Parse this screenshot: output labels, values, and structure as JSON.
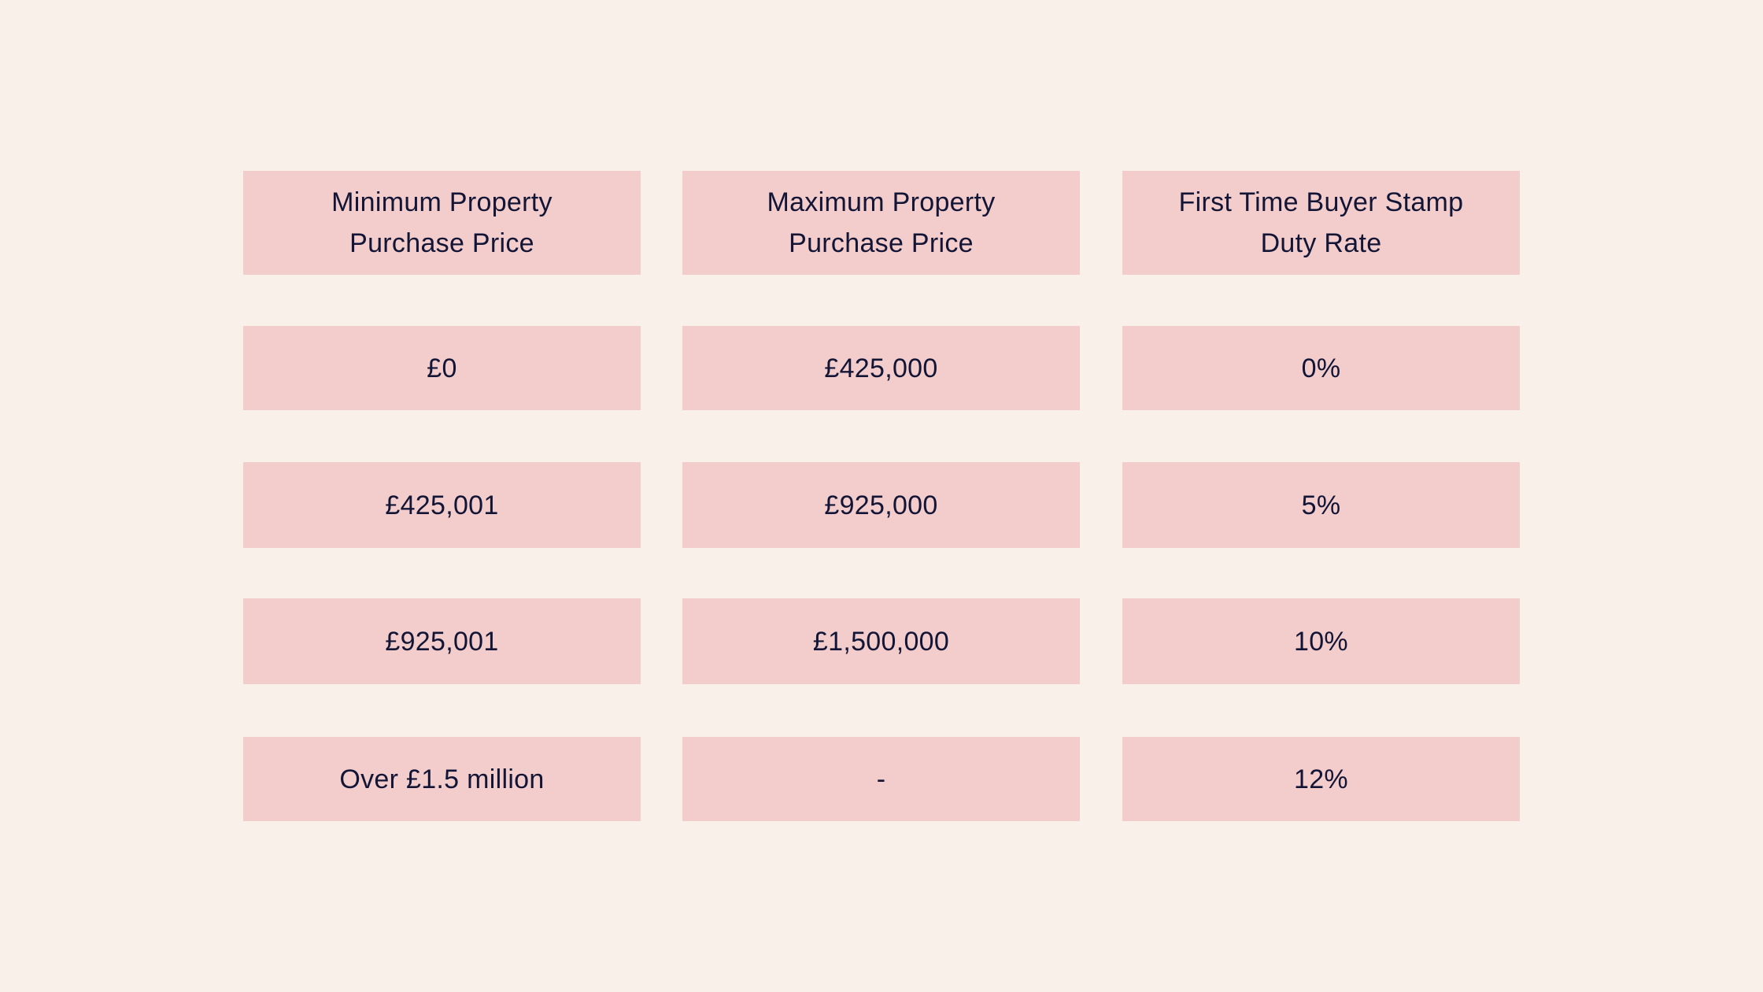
{
  "table": {
    "headers": [
      "Minimum Property Purchase Price",
      "Maximum Property Purchase Price",
      "First Time Buyer Stamp Duty Rate"
    ],
    "rows": [
      [
        "£0",
        "£425,000",
        "0%"
      ],
      [
        "£425,001",
        "£925,000",
        "5%"
      ],
      [
        "£925,001",
        "£1,500,000",
        "10%"
      ],
      [
        "Over £1.5 million",
        "-",
        "12%"
      ]
    ]
  },
  "colors": {
    "background": "#f9f0ea",
    "cell": "#f3cdcb",
    "text": "#121536"
  }
}
